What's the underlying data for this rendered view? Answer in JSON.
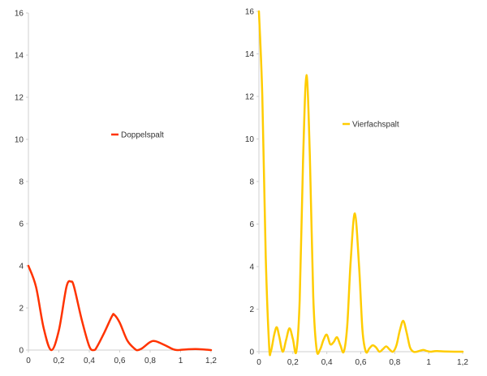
{
  "chart_data": [
    {
      "type": "line",
      "xlim": [
        0,
        1.2
      ],
      "ylim": [
        0,
        16
      ],
      "x_ticks": [
        "0",
        "0,2",
        "0,4",
        "0,6",
        "0,8",
        "1",
        "1,2"
      ],
      "y_ticks": [
        "0",
        "2",
        "4",
        "6",
        "8",
        "10",
        "12",
        "14",
        "16"
      ],
      "legend_position": "center-right",
      "grid": false,
      "series": [
        {
          "name": "Doppelspalt",
          "color": "#ff3300",
          "x": [
            0,
            0.05,
            0.1,
            0.15,
            0.2,
            0.25,
            0.28,
            0.3,
            0.35,
            0.4,
            0.43,
            0.45,
            0.5,
            0.55,
            0.565,
            0.6,
            0.65,
            0.7,
            0.72,
            0.75,
            0.8,
            0.835,
            0.9,
            0.95,
            0.98,
            1.0,
            1.05,
            1.1,
            1.15,
            1.2
          ],
          "y": [
            4.0,
            3.0,
            1.05,
            0.0,
            0.93,
            3.0,
            3.25,
            3.0,
            1.45,
            0.18,
            0.0,
            0.15,
            0.85,
            1.62,
            1.67,
            1.3,
            0.45,
            0.05,
            0.0,
            0.1,
            0.38,
            0.42,
            0.22,
            0.04,
            0.0,
            0.01,
            0.04,
            0.05,
            0.03,
            0.0
          ]
        }
      ]
    },
    {
      "type": "line",
      "xlim": [
        0,
        1.2
      ],
      "ylim": [
        0,
        16
      ],
      "x_ticks": [
        "0",
        "0,2",
        "0,4",
        "0,6",
        "0,8",
        "1",
        "1,2"
      ],
      "y_ticks": [
        "0",
        "2",
        "4",
        "6",
        "8",
        "10",
        "12",
        "14",
        "16"
      ],
      "legend_position": "center-right",
      "grid": false,
      "series": [
        {
          "name": "Vierfachspalt",
          "color": "#ffcc00",
          "x": [
            0,
            0.02,
            0.04,
            0.06,
            0.07,
            0.09,
            0.105,
            0.12,
            0.14,
            0.16,
            0.18,
            0.2,
            0.22,
            0.24,
            0.26,
            0.28,
            0.3,
            0.32,
            0.34,
            0.36,
            0.38,
            0.4,
            0.42,
            0.44,
            0.46,
            0.48,
            0.5,
            0.52,
            0.54,
            0.565,
            0.59,
            0.61,
            0.63,
            0.65,
            0.67,
            0.69,
            0.71,
            0.73,
            0.75,
            0.77,
            0.79,
            0.81,
            0.83,
            0.85,
            0.87,
            0.89,
            0.91,
            0.93,
            0.95,
            0.97,
            0.99,
            1.01,
            1.03,
            1.05,
            1.1,
            1.15,
            1.2
          ],
          "y": [
            16.0,
            12.0,
            4.5,
            0.3,
            0.0,
            0.8,
            1.15,
            0.7,
            0.0,
            0.55,
            1.1,
            0.6,
            0.0,
            2.4,
            9.0,
            13.0,
            9.2,
            2.6,
            0.1,
            0.1,
            0.55,
            0.8,
            0.35,
            0.45,
            0.68,
            0.3,
            0.0,
            1.2,
            4.2,
            6.5,
            4.0,
            1.0,
            0.0,
            0.15,
            0.3,
            0.2,
            0.0,
            0.12,
            0.25,
            0.1,
            0.0,
            0.3,
            1.0,
            1.45,
            0.9,
            0.2,
            0.0,
            0.0,
            0.05,
            0.08,
            0.03,
            0.0,
            0.02,
            0.03,
            0.01,
            0.0,
            0.0
          ]
        }
      ]
    }
  ]
}
